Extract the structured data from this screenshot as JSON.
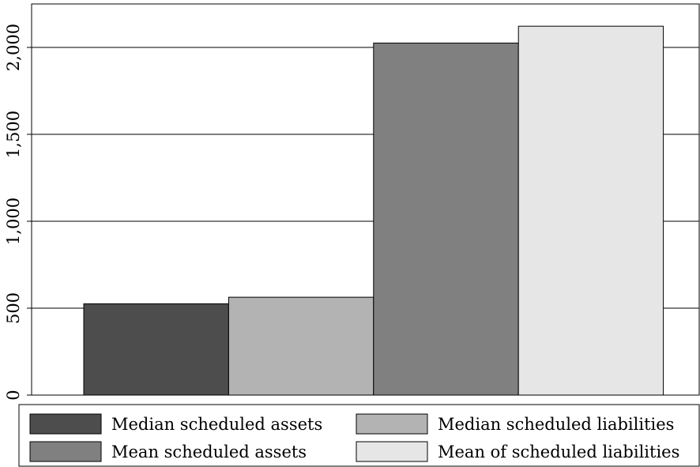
{
  "chart_data": {
    "type": "bar",
    "title": "",
    "xlabel": "",
    "ylabel": "",
    "ylim": [
      0,
      2250
    ],
    "yticks": [
      0,
      500,
      1000,
      1500,
      2000
    ],
    "ytick_labels": [
      "0",
      "500",
      "1,000",
      "1,500",
      "2,000"
    ],
    "grid": "horizontal",
    "legend_position": "bottom",
    "series": [
      {
        "name": "Median scheduled assets",
        "value": 525,
        "color": "#4d4d4d"
      },
      {
        "name": "Median scheduled liabilities",
        "value": 563,
        "color": "#b3b3b3"
      },
      {
        "name": "Mean scheduled assets",
        "value": 2025,
        "color": "#808080"
      },
      {
        "name": "Mean of scheduled liabilities",
        "value": 2122,
        "color": "#e6e6e6"
      }
    ]
  }
}
